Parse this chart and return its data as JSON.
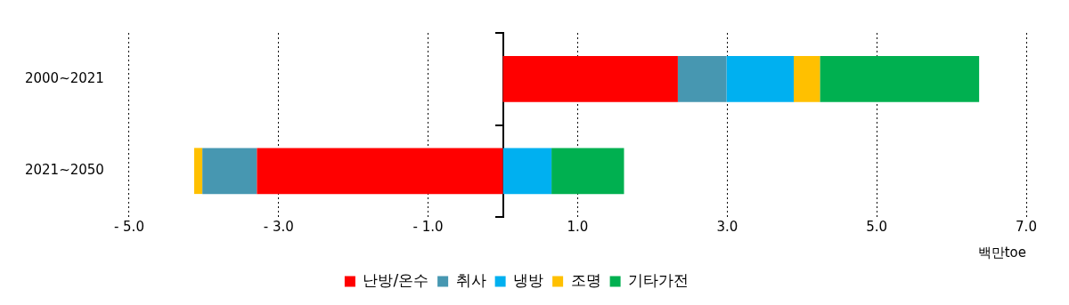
{
  "chart_data": {
    "type": "bar",
    "orientation": "horizontal",
    "stacked": true,
    "categories": [
      "2000~2021",
      "2021~2050"
    ],
    "series": [
      {
        "name": "난방/온수",
        "color": "#ff0000",
        "values": [
          2.34,
          -3.29
        ]
      },
      {
        "name": "취사",
        "color": "#4797b1",
        "values": [
          0.65,
          -0.73
        ]
      },
      {
        "name": "냉방",
        "color": "#00b0f0",
        "values": [
          0.9,
          0.65
        ]
      },
      {
        "name": "조명",
        "color": "#ffc000",
        "values": [
          0.35,
          -0.11
        ]
      },
      {
        "name": "기타가전",
        "color": "#00b050",
        "values": [
          2.13,
          0.97
        ]
      }
    ],
    "xlim": [
      -5,
      7
    ],
    "xticks": [
      {
        "value": -5,
        "label": "- 5.0"
      },
      {
        "value": -3,
        "label": "- 3.0"
      },
      {
        "value": -1,
        "label": "- 1.0"
      },
      {
        "value": 1,
        "label": "1.0"
      },
      {
        "value": 3,
        "label": "3.0"
      },
      {
        "value": 5,
        "label": "5.0"
      },
      {
        "value": 7,
        "label": "7.0"
      }
    ],
    "xlabel": "백만toe",
    "grid": "x",
    "legend": "bottom"
  }
}
